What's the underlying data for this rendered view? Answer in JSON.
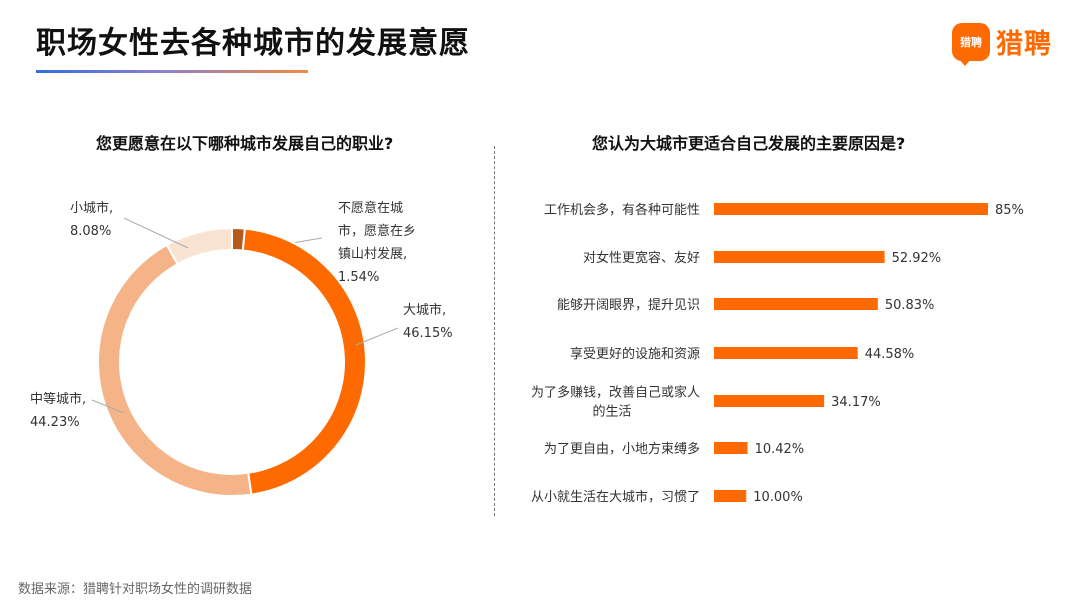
{
  "header": {
    "title": "职场女性去各种城市的发展意愿"
  },
  "logo": {
    "mark": "猎聘",
    "text": "猎聘"
  },
  "left_chart": {
    "subtitle": "您更愿意在以下哪种城市发展自己的职业?"
  },
  "right_chart": {
    "subtitle": "您认为大城市更适合自己发展的主要原因是?"
  },
  "footer": {
    "source": "数据来源：猎聘针对职场女性的调研数据"
  },
  "colors": {
    "accent": "#ff6a00",
    "mid": "#f4b487",
    "light": "#fbe3d2",
    "dark": "#b5591c"
  },
  "chart_data": [
    {
      "type": "pie",
      "subtitle": "您更愿意在以下哪种城市发展自己的职业?",
      "slices": [
        {
          "name": "不愿意在城市，愿意在乡镇山村发展",
          "value": 1.54,
          "value_label": "1.54%",
          "label_lines": [
            "不愿意在城",
            "市，愿意在乡",
            "镇山村发展,",
            "1.54%"
          ],
          "color": "#b5591c"
        },
        {
          "name": "大城市",
          "value": 46.15,
          "value_label": "46.15%",
          "label_lines": [
            "大城市,",
            "46.15%"
          ],
          "color": "#ff6a00"
        },
        {
          "name": "中等城市",
          "value": 44.23,
          "value_label": "44.23%",
          "label_lines": [
            "中等城市,",
            "44.23%"
          ],
          "color": "#f4b487"
        },
        {
          "name": "小城市",
          "value": 8.08,
          "value_label": "8.08%",
          "label_lines": [
            "小城市,",
            "8.08%"
          ],
          "color": "#fbe3d2"
        }
      ]
    },
    {
      "type": "bar",
      "orientation": "horizontal",
      "subtitle": "您认为大城市更适合自己发展的主要原因是?",
      "categories": [
        [
          "工作机会多，有各种可能性"
        ],
        [
          "对女性更宽容、友好"
        ],
        [
          "能够开阔眼界，提升见识"
        ],
        [
          "享受更好的设施和资源"
        ],
        [
          "为了多赚钱，改善自己或家人",
          "的生活"
        ],
        [
          "为了更自由，小地方束缚多"
        ],
        [
          "从小就生活在大城市，习惯了"
        ]
      ],
      "values": [
        85,
        52.92,
        50.83,
        44.58,
        34.17,
        10.42,
        10.0
      ],
      "value_labels": [
        "85%",
        "52.92%",
        "50.83%",
        "44.58%",
        "34.17%",
        "10.42%",
        "10.00%"
      ],
      "color": "#ff6a00"
    }
  ]
}
